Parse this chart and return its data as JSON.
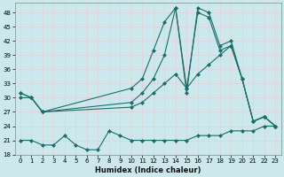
{
  "xlabel": "Humidex (Indice chaleur)",
  "bg_color": "#cce8ec",
  "grid_color": "#b8d8dc",
  "line_color": "#1a6e6a",
  "xlim": [
    -0.5,
    23.5
  ],
  "ylim": [
    18,
    50
  ],
  "yticks": [
    18,
    21,
    24,
    27,
    30,
    33,
    36,
    39,
    42,
    45,
    48
  ],
  "xticks": [
    0,
    1,
    2,
    3,
    4,
    5,
    6,
    7,
    8,
    9,
    10,
    11,
    12,
    13,
    14,
    15,
    16,
    17,
    18,
    19,
    20,
    21,
    22,
    23
  ],
  "series": [
    {
      "x": [
        0,
        1,
        2,
        10,
        11,
        12,
        13,
        14,
        15,
        16,
        17,
        18,
        19,
        20,
        21,
        22,
        23
      ],
      "y": [
        31,
        30,
        27,
        32,
        34,
        40,
        46,
        49,
        31,
        49,
        48,
        41,
        42,
        34,
        25,
        26,
        24
      ]
    },
    {
      "x": [
        0,
        1,
        2,
        10,
        11,
        12,
        13,
        14,
        15,
        16,
        17,
        18,
        19,
        20,
        21,
        22,
        23
      ],
      "y": [
        31,
        30,
        27,
        29,
        31,
        34,
        39,
        49,
        32,
        48,
        47,
        40,
        41,
        34,
        25,
        26,
        24
      ]
    },
    {
      "x": [
        0,
        1,
        2,
        10,
        11,
        12,
        13,
        14,
        15,
        16,
        17,
        18,
        19,
        20,
        21,
        22,
        23
      ],
      "y": [
        30,
        30,
        27,
        28,
        29,
        31,
        33,
        35,
        32,
        35,
        37,
        39,
        41,
        34,
        25,
        26,
        24
      ]
    },
    {
      "x": [
        0,
        1,
        2,
        3,
        4,
        5,
        6,
        7,
        8,
        9,
        10,
        11,
        12,
        13,
        14,
        15,
        16,
        17,
        18,
        19,
        20,
        21,
        22,
        23
      ],
      "y": [
        21,
        21,
        20,
        20,
        22,
        20,
        19,
        19,
        23,
        22,
        21,
        21,
        21,
        21,
        21,
        21,
        22,
        22,
        22,
        23,
        23,
        23,
        24,
        24
      ]
    }
  ]
}
